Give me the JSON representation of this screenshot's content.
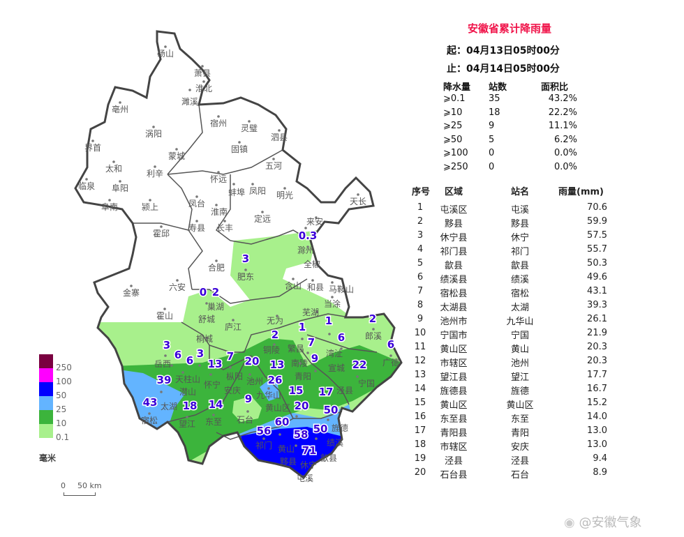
{
  "panel": {
    "title": "安徽省累计降雨量",
    "start": "起：04月13日05时00分",
    "end": "止：04月14日05时00分",
    "stats_headers": [
      "降水量",
      "站数",
      "面积比"
    ],
    "stats": [
      {
        "level": "⩾0.1",
        "count": "35",
        "ratio": "43.2%"
      },
      {
        "level": "⩾10",
        "count": "18",
        "ratio": "22.2%"
      },
      {
        "level": "⩾25",
        "count": "9",
        "ratio": "11.1%"
      },
      {
        "level": "⩾50",
        "count": "5",
        "ratio": "6.2%"
      },
      {
        "level": "⩾100",
        "count": "0",
        "ratio": "0.0%"
      },
      {
        "level": "⩾250",
        "count": "0",
        "ratio": "0.0%"
      }
    ],
    "table_headers": [
      "序号",
      "区域",
      "站名",
      "雨量(mm)"
    ],
    "rows": [
      [
        "1",
        "屯溪区",
        "屯溪",
        "70.6"
      ],
      [
        "2",
        "黟县",
        "黟县",
        "59.9"
      ],
      [
        "3",
        "休宁县",
        "休宁",
        "57.5"
      ],
      [
        "4",
        "祁门县",
        "祁门",
        "55.7"
      ],
      [
        "5",
        "歙县",
        "歙县",
        "50.3"
      ],
      [
        "6",
        "绩溪县",
        "绩溪",
        "49.6"
      ],
      [
        "7",
        "宿松县",
        "宿松",
        "43.1"
      ],
      [
        "8",
        "太湖县",
        "太湖",
        "39.3"
      ],
      [
        "9",
        "池州市",
        "九华山",
        "26.1"
      ],
      [
        "10",
        "宁国市",
        "宁国",
        "21.9"
      ],
      [
        "11",
        "黄山区",
        "黄山",
        "20.3"
      ],
      [
        "12",
        "市辖区",
        "池州",
        "20.3"
      ],
      [
        "13",
        "望江县",
        "望江",
        "17.7"
      ],
      [
        "14",
        "旌德县",
        "旌德",
        "16.7"
      ],
      [
        "15",
        "黄山区",
        "黄山区",
        "15.2"
      ],
      [
        "16",
        "东至县",
        "东至",
        "14.0"
      ],
      [
        "17",
        "青阳县",
        "青阳",
        "13.0"
      ],
      [
        "18",
        "市辖区",
        "安庆",
        "13.0"
      ],
      [
        "19",
        "泾县",
        "泾县",
        "9.4"
      ],
      [
        "20",
        "石台县",
        "石台",
        "8.9"
      ]
    ]
  },
  "legend": {
    "colors": [
      "#7a0040",
      "#ff00ff",
      "#0000ff",
      "#63b4ff",
      "#3cb43c",
      "#a8f08c"
    ],
    "labels": [
      "250",
      "100",
      "50",
      "25",
      "10",
      "0.1"
    ],
    "unit": "毫米"
  },
  "scale": {
    "zero": "0",
    "label": "50 km"
  },
  "map": {
    "cities": [
      "砀山",
      "萧县",
      "淮北",
      "濉溪",
      "亳州",
      "宿州",
      "灵璧",
      "泗县",
      "涡阳",
      "蒙城",
      "固镇",
      "五河",
      "界首",
      "太和",
      "利辛",
      "怀远",
      "临泉",
      "阜阳",
      "蚌埠",
      "凤阳",
      "明光",
      "天长",
      "阜南",
      "颍上",
      "凤台",
      "淮南",
      "寿县",
      "长丰",
      "定远",
      "来安",
      "滁州",
      "霍邱",
      "全椒",
      "合肥",
      "肥东",
      "六安",
      "含山",
      "和县",
      "马鞍山",
      "金寨",
      "巢湖",
      "舒城",
      "当涂",
      "霍山",
      "芜湖",
      "庐江",
      "无为",
      "繁昌",
      "南陵",
      "铜陵",
      "湾沚",
      "宣城",
      "郎溪",
      "广德",
      "桐城",
      "枞阳",
      "岳西",
      "天柱山",
      "潜山",
      "怀宁",
      "安庆",
      "池州",
      "青阳",
      "泾县",
      "宁国",
      "九华山",
      "太湖",
      "宿松",
      "望江",
      "东至",
      "石台",
      "黄山区",
      "黄山",
      "旌德",
      "绩溪",
      "祁门",
      "黟县",
      "歙县",
      "休宁",
      "屯溪"
    ],
    "rain_values": [
      "0.3",
      "3",
      "0",
      "2",
      "3",
      "6",
      "6",
      "3",
      "13",
      "7",
      "20",
      "13",
      "26",
      "15",
      "17",
      "9",
      "22",
      "6",
      "2",
      "1",
      "6",
      "1",
      "7",
      "2",
      "39",
      "43",
      "18",
      "14",
      "9",
      "20",
      "50",
      "60",
      "56",
      "58",
      "50",
      "71"
    ],
    "zone_colors": {
      "light_green": "#a8f08c",
      "green": "#3cb43c",
      "light_blue": "#63b4ff",
      "blue": "#0000ff"
    }
  },
  "watermark": "@安徽气象"
}
